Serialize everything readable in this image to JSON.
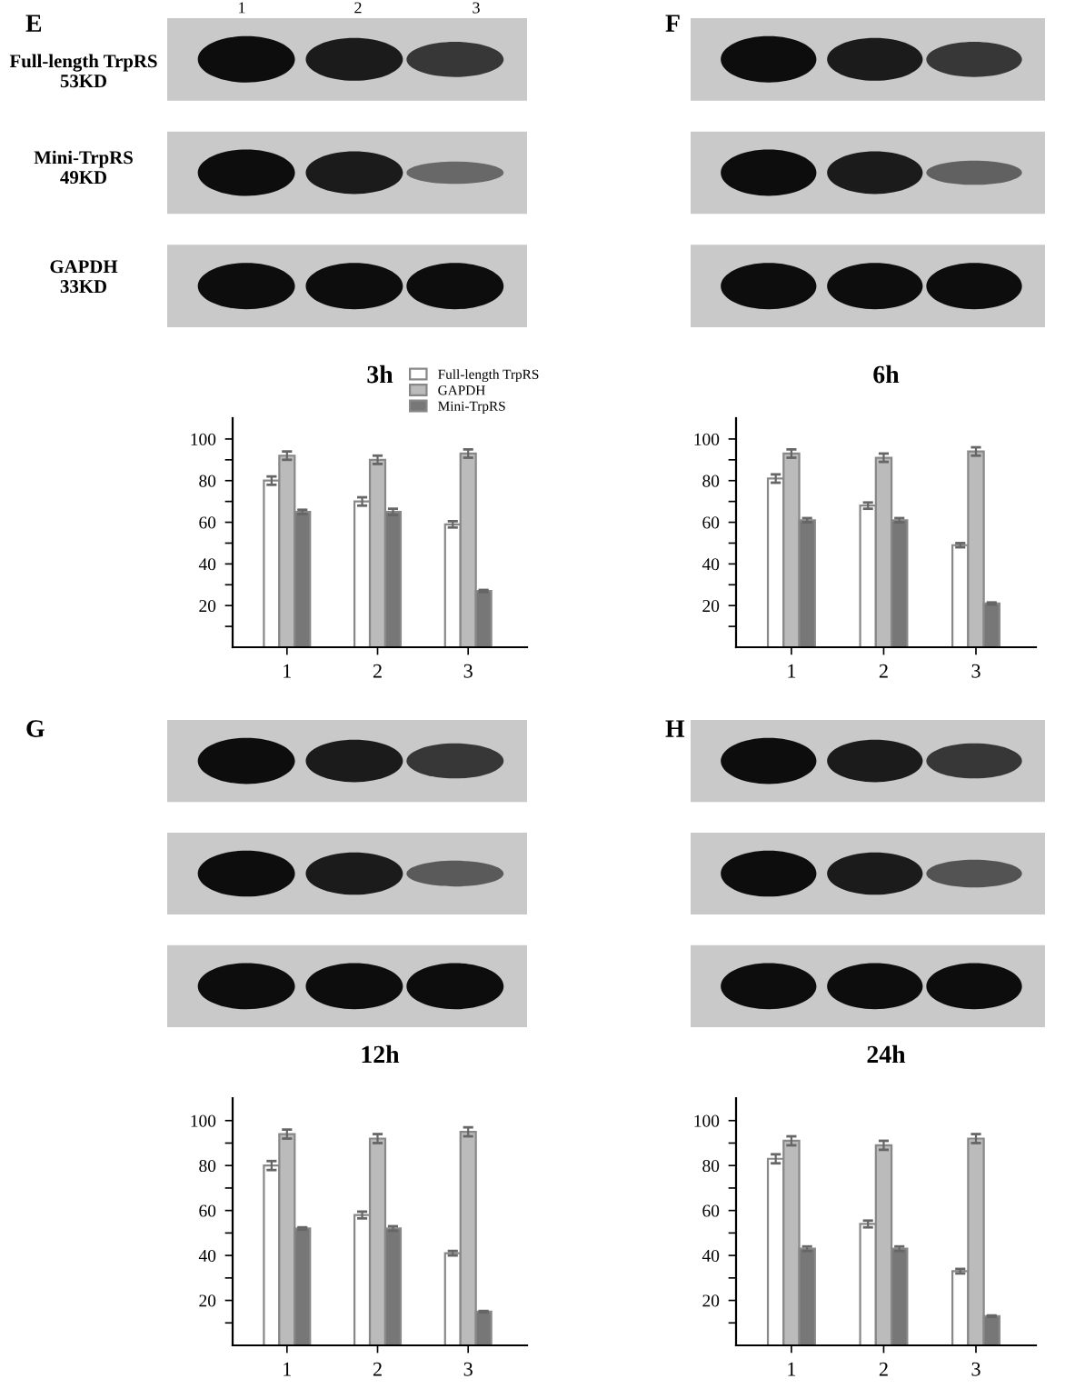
{
  "chart_data": [
    {
      "type": "bar",
      "title": "3h",
      "categories": [
        "1",
        "2",
        "3"
      ],
      "ylim": [
        0,
        110
      ],
      "yticks": [
        {
          "value": 10,
          "label": null
        },
        20,
        {
          "value": 30,
          "label": null
        },
        40,
        {
          "value": 50,
          "label": null
        },
        60,
        {
          "value": 70,
          "label": null
        },
        80,
        {
          "value": 90,
          "label": null
        },
        100
      ],
      "grid": false,
      "legend": "top right",
      "annotations": [
        "E",
        "1",
        "2",
        "3",
        "Full-length TrpRS\n53KD",
        "Mini-TrpRS\n49KD",
        "GAPDH\n33KD"
      ],
      "series": [
        {
          "name": "Full-length TrpRS",
          "color": "#ffffff",
          "values": [
            80,
            70,
            59
          ],
          "errors": [
            2,
            2,
            1.5
          ]
        },
        {
          "name": "GAPDH",
          "color": "#bbbbbb",
          "values": [
            92,
            90,
            93
          ],
          "errors": [
            2,
            2,
            2
          ]
        },
        {
          "name": "Mini-TrpRS",
          "color": "#777777",
          "values": [
            65,
            65,
            27
          ],
          "errors": [
            1,
            1.5,
            0.5
          ]
        }
      ]
    },
    {
      "type": "bar",
      "title": "6h",
      "categories": [
        "1",
        "2",
        "3"
      ],
      "ylim": [
        0,
        110
      ],
      "yticks": [
        {
          "value": 10,
          "label": null
        },
        20,
        {
          "value": 30,
          "label": null
        },
        40,
        {
          "value": 50,
          "label": null
        },
        60,
        {
          "value": 70,
          "label": null
        },
        80,
        {
          "value": 90,
          "label": null
        },
        100
      ],
      "grid": false,
      "annotations": [
        "F"
      ],
      "series": [
        {
          "color": "#ffffff",
          "values": [
            81,
            68,
            49
          ],
          "errors": [
            2,
            1.5,
            1
          ]
        },
        {
          "color": "#bbbbbb",
          "values": [
            93,
            91,
            94
          ],
          "errors": [
            2,
            2,
            2
          ]
        },
        {
          "color": "#777777",
          "values": [
            61,
            61,
            21
          ],
          "errors": [
            1,
            1,
            0.5
          ]
        }
      ]
    },
    {
      "type": "bar",
      "title": "12h",
      "categories": [
        "1",
        "2",
        "3"
      ],
      "ylim": [
        0,
        110
      ],
      "yticks": [
        {
          "value": 10,
          "label": null
        },
        20,
        {
          "value": 30,
          "label": null
        },
        40,
        {
          "value": 50,
          "label": null
        },
        60,
        {
          "value": 70,
          "label": null
        },
        80,
        {
          "value": 90,
          "label": null
        },
        100
      ],
      "grid": false,
      "annotations": [
        "G"
      ],
      "series": [
        {
          "color": "#ffffff",
          "values": [
            80,
            58,
            41
          ],
          "errors": [
            2,
            1.5,
            1
          ]
        },
        {
          "color": "#bbbbbb",
          "values": [
            94,
            92,
            95
          ],
          "errors": [
            2,
            2,
            2
          ]
        },
        {
          "color": "#777777",
          "values": [
            52,
            52,
            15
          ],
          "errors": [
            0.5,
            1,
            0.3
          ]
        }
      ]
    },
    {
      "type": "bar",
      "title": "24h",
      "categories": [
        "1",
        "2",
        "3"
      ],
      "ylim": [
        0,
        110
      ],
      "yticks": [
        {
          "value": 10,
          "label": null
        },
        20,
        {
          "value": 30,
          "label": null
        },
        40,
        {
          "value": 50,
          "label": null
        },
        60,
        {
          "value": 70,
          "label": null
        },
        80,
        {
          "value": 90,
          "label": null
        },
        100
      ],
      "grid": false,
      "annotations": [
        "H"
      ],
      "series": [
        {
          "color": "#ffffff",
          "values": [
            83,
            54,
            33
          ],
          "errors": [
            2,
            1.5,
            1
          ]
        },
        {
          "color": "#bbbbbb",
          "values": [
            91,
            89,
            92
          ],
          "errors": [
            2,
            2,
            2
          ]
        },
        {
          "color": "#777777",
          "values": [
            43,
            43,
            13
          ],
          "errors": [
            1,
            1,
            0.3
          ]
        }
      ]
    }
  ]
}
